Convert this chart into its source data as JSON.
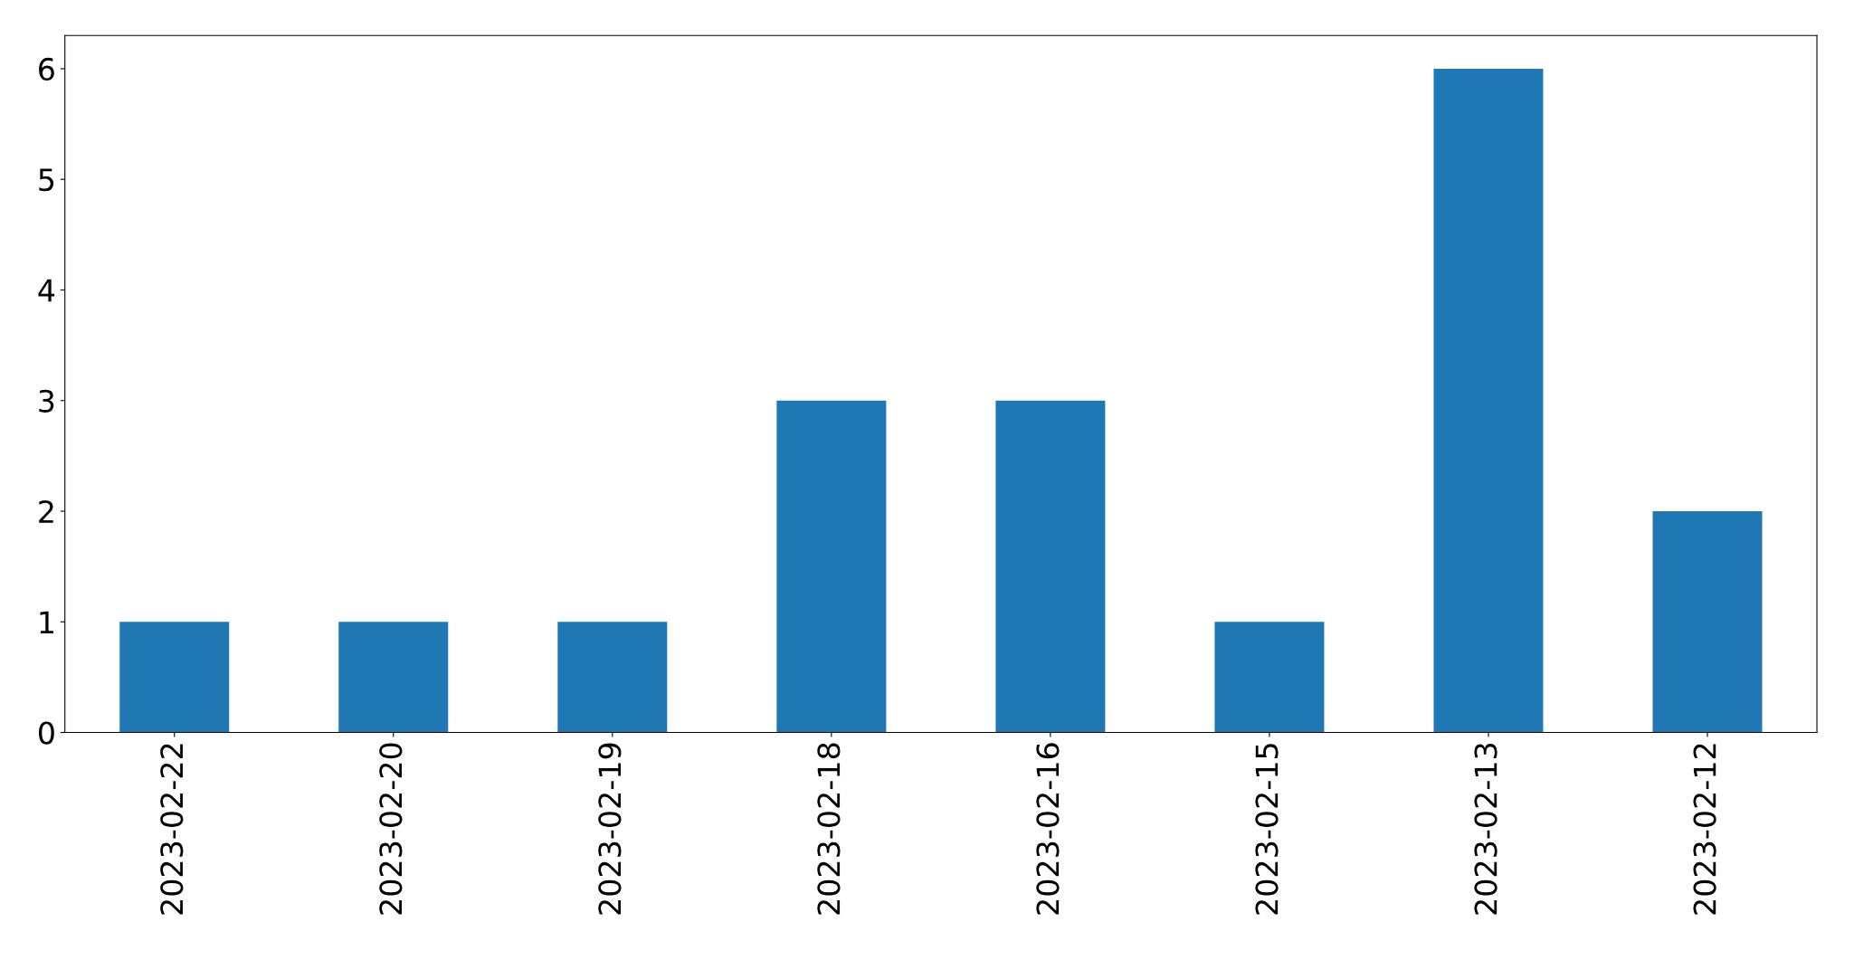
{
  "chart_data": {
    "type": "bar",
    "categories": [
      "2023-02-22",
      "2023-02-20",
      "2023-02-19",
      "2023-02-18",
      "2023-02-16",
      "2023-02-15",
      "2023-02-13",
      "2023-02-12"
    ],
    "values": [
      1,
      1,
      1,
      3,
      3,
      1,
      6,
      2
    ],
    "color": "#1f77b4",
    "ylim": [
      0,
      6.3
    ],
    "yticks": [
      0,
      1,
      2,
      3,
      4,
      5,
      6
    ],
    "grid": false
  }
}
